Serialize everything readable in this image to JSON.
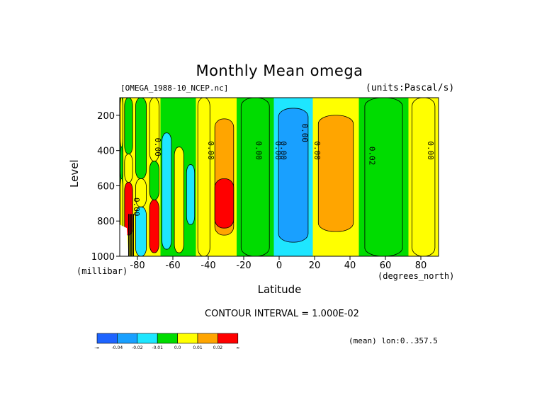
{
  "title": "Monthly Mean omega",
  "file_label": "[OMEGA_1988-10_NCEP.nc]",
  "units_label": "(units:Pascal/s)",
  "y_axis_label": "Level",
  "y_unit_label": "(millibar)",
  "x_axis_label": "Latitude",
  "x_unit_label": "(degrees_north)",
  "contour_interval": "CONTOUR INTERVAL = 1.000E-02",
  "mean_label": "(mean) lon:0..357.5",
  "chart_data": {
    "type": "heatmap",
    "title": "Monthly Mean omega",
    "xlabel": "Latitude",
    "ylabel": "Level",
    "xlim": [
      -90,
      90
    ],
    "ylim": [
      1000,
      100
    ],
    "x_ticks": [
      "-80",
      "-60",
      "-40",
      "-20",
      "0",
      "20",
      "40",
      "60",
      "80"
    ],
    "x_tick_values": [
      -80,
      -60,
      -40,
      -20,
      0,
      20,
      40,
      60,
      80
    ],
    "y_ticks": [
      "200",
      "400",
      "600",
      "800",
      "1000"
    ],
    "y_tick_values": [
      200,
      400,
      600,
      800,
      1000
    ],
    "contour_labels": [
      "0.00",
      "0.00",
      "0.00",
      "0.00",
      "0.00",
      "0.00",
      "0.00",
      "0.00",
      "0.02",
      "0.00"
    ],
    "legend": {
      "colors": [
        "#1e64ff",
        "#19a0ff",
        "#1ee6ff",
        "#00dc00",
        "#ffff00",
        "#ffa500",
        "#ff0000"
      ],
      "labels": [
        "-∞",
        "-0.04",
        "-0.02",
        "-0.01",
        "0.0",
        "0.01",
        "0.02",
        "∞"
      ]
    },
    "palette": {
      "green": "#00dc00",
      "yellow": "#ffff00",
      "orange": "#ffa500",
      "red": "#ff0000",
      "cyan": "#1ee6ff",
      "blue": "#19a0ff",
      "missing": "#ffffff"
    },
    "columns": [
      {
        "lat": -90,
        "top": "green",
        "bands": [
          {
            "from": 100,
            "to": 380,
            "color": "yellow"
          },
          {
            "from": 380,
            "to": 560,
            "color": "green"
          },
          {
            "from": 560,
            "to": 1000,
            "color": "yellow"
          }
        ]
      },
      {
        "lat": -86,
        "top": "yellow",
        "bands": [
          {
            "from": 100,
            "to": 420,
            "color": "green"
          },
          {
            "from": 420,
            "to": 580,
            "color": "yellow"
          },
          {
            "from": 580,
            "to": 880,
            "color": "red"
          }
        ]
      },
      {
        "lat": -78,
        "top": "yellow",
        "bands": [
          {
            "from": 100,
            "to": 560,
            "color": "green"
          },
          {
            "from": 560,
            "to": 720,
            "color": "yellow"
          },
          {
            "from": 720,
            "to": 1000,
            "color": "cyan"
          }
        ]
      },
      {
        "lat": -70,
        "top": "yellow",
        "bands": [
          {
            "from": 100,
            "to": 460,
            "color": "yellow"
          },
          {
            "from": 460,
            "to": 680,
            "color": "green"
          },
          {
            "from": 680,
            "to": 980,
            "color": "red"
          }
        ]
      },
      {
        "lat": -64,
        "top": "green",
        "bands": [
          {
            "from": 300,
            "to": 960,
            "color": "cyan"
          }
        ]
      },
      {
        "lat": -56,
        "top": "green",
        "bands": [
          {
            "from": 380,
            "to": 980,
            "color": "yellow"
          }
        ]
      },
      {
        "lat": -50,
        "top": "green",
        "bands": [
          {
            "from": 480,
            "to": 820,
            "color": "cyan"
          }
        ]
      },
      {
        "lat": -44,
        "top": "yellow",
        "bands": [
          {
            "from": 100,
            "to": 1000,
            "color": "yellow"
          }
        ]
      },
      {
        "lat": -32,
        "top": "yellow",
        "bands": [
          {
            "from": 220,
            "to": 880,
            "color": "orange"
          },
          {
            "from": 560,
            "to": 840,
            "color": "red"
          }
        ]
      },
      {
        "lat": -16,
        "top": "green",
        "bands": [
          {
            "from": 100,
            "to": 1000,
            "color": "green"
          }
        ]
      },
      {
        "lat": 10,
        "top": "cyan",
        "bands": [
          {
            "from": 160,
            "to": 920,
            "color": "blue"
          }
        ]
      },
      {
        "lat": 28,
        "top": "yellow",
        "bands": [
          {
            "from": 200,
            "to": 860,
            "color": "orange"
          }
        ]
      },
      {
        "lat": 62,
        "top": "green",
        "bands": [
          {
            "from": 100,
            "to": 1000,
            "color": "green"
          }
        ]
      },
      {
        "lat": 84,
        "top": "yellow",
        "bands": [
          {
            "from": 100,
            "to": 1000,
            "color": "yellow"
          }
        ]
      }
    ]
  }
}
